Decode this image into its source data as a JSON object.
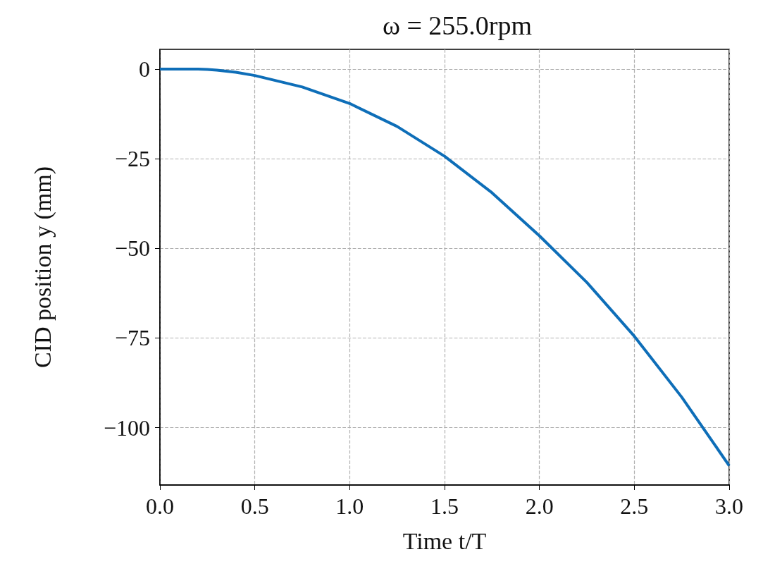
{
  "chart_data": {
    "type": "line",
    "title": "ω = 255.0rpm",
    "xlabel": "Time t/T",
    "ylabel": "CID position y (mm)",
    "x": [
      0,
      0.1,
      0.2,
      0.25,
      0.3,
      0.4,
      0.5,
      0.75,
      1.0,
      1.25,
      1.5,
      1.75,
      2.0,
      2.25,
      2.5,
      2.75,
      3.0
    ],
    "series": [
      {
        "color": "#0e6eb8",
        "values": [
          0,
          0,
          0,
          -0.1,
          -0.3,
          -0.9,
          -1.8,
          -5,
          -9.6,
          -16,
          -24.3,
          -34.5,
          -46.5,
          -59.5,
          -74.5,
          -91.5,
          -110.6
        ]
      }
    ],
    "xlim": [
      0,
      3
    ],
    "xticks": [
      {
        "value": 0,
        "label": "0.0"
      },
      0.5,
      {
        "value": 1,
        "label": "1.0"
      },
      1.5,
      {
        "value": 2,
        "label": "2.0"
      },
      2.5,
      {
        "value": 3,
        "label": "3.0"
      }
    ],
    "ylim": [
      -116,
      5.5
    ],
    "yticks": [
      {
        "value": -100,
        "label": "−100"
      },
      {
        "value": -75,
        "label": "−75"
      },
      {
        "value": -50,
        "label": "−50"
      },
      {
        "value": -25,
        "label": "−25"
      },
      0
    ],
    "grid": true,
    "marker": "none",
    "line_style": "solid"
  }
}
